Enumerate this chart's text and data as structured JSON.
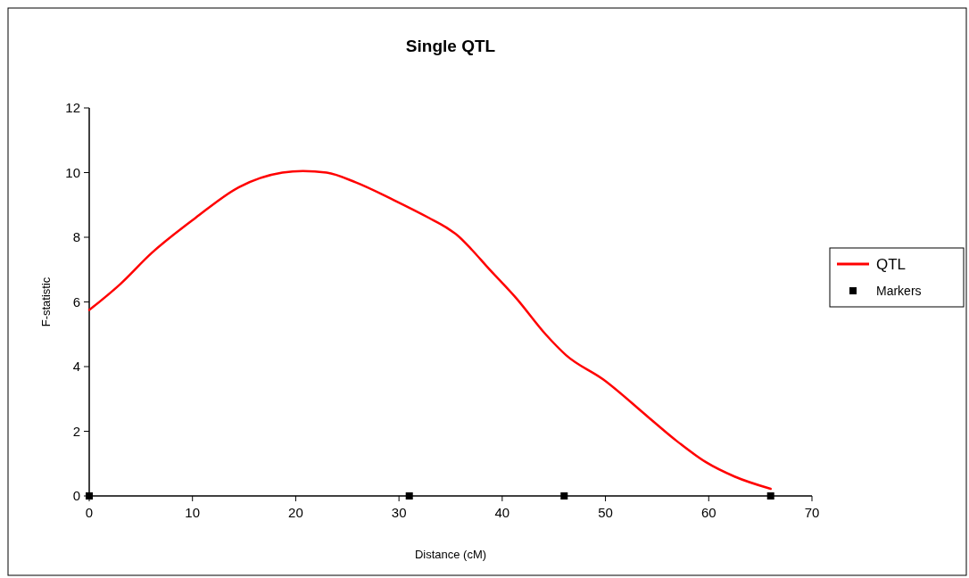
{
  "chart_data": {
    "type": "line",
    "title": "Single QTL",
    "xlabel": "Distance (cM)",
    "ylabel": "F-statistic",
    "xlim": [
      0,
      70
    ],
    "xticks": [
      0,
      10,
      20,
      30,
      40,
      50,
      60,
      70
    ],
    "ylim": [
      0,
      12
    ],
    "yticks": [
      0,
      2,
      4,
      6,
      8,
      10,
      12
    ],
    "grid": false,
    "legend": "right",
    "series": [
      {
        "name": "QTL",
        "color": "#ff0000",
        "marker": "none",
        "x": [
          0,
          3,
          6,
          10.3,
          14.5,
          18.7,
          20.7,
          23,
          25.8,
          29.5,
          32.9,
          34.6,
          35.7,
          37.1,
          38.5,
          41.4,
          44.2,
          46.2,
          49.8,
          54.1,
          56.9,
          59.7,
          62.5,
          66
        ],
        "values": [
          5.75,
          6.55,
          7.5,
          8.6,
          9.55,
          10,
          10.05,
          10,
          9.7,
          9.15,
          8.6,
          8.3,
          8.05,
          7.6,
          7.1,
          6.1,
          5,
          4.35,
          3.6,
          2.45,
          1.7,
          1.05,
          0.6,
          0.22
        ]
      },
      {
        "name": "Markers",
        "type": "scatter",
        "color": "#000000",
        "marker": "square",
        "x": [
          0,
          31,
          46,
          66
        ],
        "values": [
          0,
          0,
          0,
          0
        ]
      }
    ]
  }
}
